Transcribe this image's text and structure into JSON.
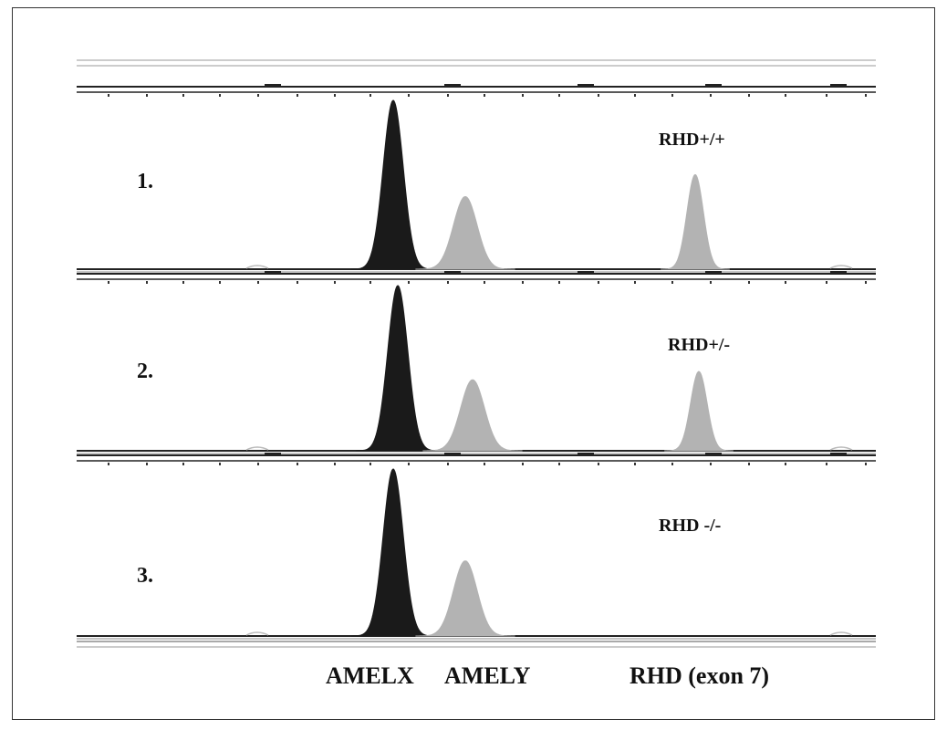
{
  "chart_data": {
    "type": "area",
    "title": "",
    "xlabel": "",
    "ylabel": "",
    "panels": [
      {
        "sample_label": "1.",
        "genotype": "RHD+/+"
      },
      {
        "sample_label": "2.",
        "genotype": "RHD+/-"
      },
      {
        "sample_label": "3.",
        "genotype": "RHD -/-"
      }
    ],
    "categories": [
      "AMELX",
      "AMELY",
      "RHD (exon 7)"
    ],
    "series": [
      {
        "values": [
          1.0,
          0.43,
          0.56
        ]
      },
      {
        "values": [
          1.0,
          0.43,
          0.48
        ]
      },
      {
        "values": [
          1.0,
          0.45,
          0.0
        ]
      }
    ],
    "colors": {
      "amelx": "#1a1a1a",
      "amely": "#b3b3b3",
      "rhd": "#b3b3b3"
    }
  }
}
